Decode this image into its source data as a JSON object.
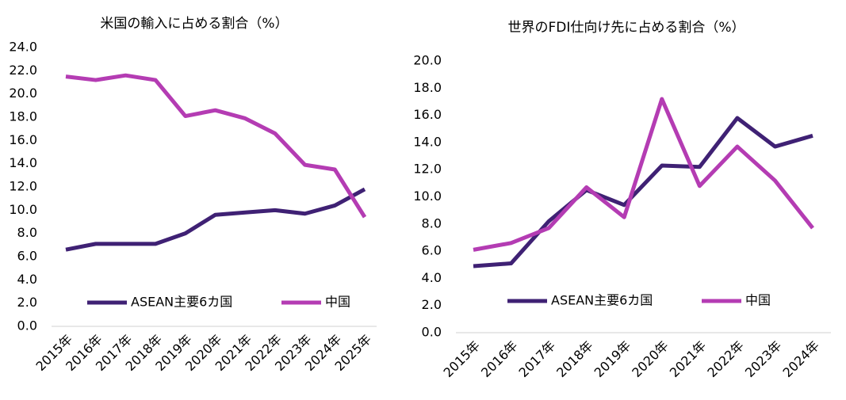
{
  "chart_data": [
    {
      "type": "line",
      "title": "米国の輸入に占める割合（%）",
      "categories": [
        "2015年",
        "2016年",
        "2017年",
        "2018年",
        "2019年",
        "2020年",
        "2021年",
        "2022年",
        "2023年",
        "2024年",
        "2025年"
      ],
      "series": [
        {
          "name": "ASEAN主要6カ国",
          "color": "#3f2174",
          "values": [
            6.6,
            7.1,
            7.1,
            7.1,
            8.0,
            9.6,
            9.8,
            10.0,
            9.7,
            10.4,
            11.8
          ]
        },
        {
          "name": "中国",
          "color": "#b43cb3",
          "values": [
            21.5,
            21.2,
            21.6,
            21.2,
            18.1,
            18.6,
            17.9,
            16.6,
            13.9,
            13.5,
            9.4
          ]
        }
      ],
      "ylim": [
        0,
        24
      ],
      "yticks": [
        {
          "value": 0,
          "label": "0.0"
        },
        {
          "value": 2,
          "label": "2.0"
        },
        {
          "value": 4,
          "label": "4.0"
        },
        {
          "value": 6,
          "label": "6.0"
        },
        {
          "value": 8,
          "label": "8.0"
        },
        {
          "value": 10,
          "label": "10.0"
        },
        {
          "value": 12,
          "label": "12.0"
        },
        {
          "value": 14,
          "label": "14.0"
        },
        {
          "value": 16,
          "label": "16.0"
        },
        {
          "value": 18,
          "label": "18.0"
        },
        {
          "value": 20,
          "label": "20.0"
        },
        {
          "value": 22,
          "label": "22.0"
        },
        {
          "value": 24,
          "label": "24.0"
        }
      ],
      "grid": false
    },
    {
      "type": "line",
      "title": "世界のFDI仕向け先に占める割合（%）",
      "categories": [
        "2015年",
        "2016年",
        "2017年",
        "2018年",
        "2019年",
        "2020年",
        "2021年",
        "2022年",
        "2023年",
        "2024年"
      ],
      "series": [
        {
          "name": "ASEAN主要6カ国",
          "color": "#3f2174",
          "values": [
            4.9,
            5.1,
            8.2,
            10.5,
            9.4,
            12.3,
            12.2,
            15.8,
            13.7,
            14.5
          ]
        },
        {
          "name": "中国",
          "color": "#b43cb3",
          "values": [
            6.1,
            6.6,
            7.7,
            10.7,
            8.5,
            17.2,
            10.8,
            13.7,
            11.2,
            7.7
          ]
        }
      ],
      "ylim": [
        0,
        20
      ],
      "yticks": [
        {
          "value": 0,
          "label": "0.0"
        },
        {
          "value": 2,
          "label": "2.0"
        },
        {
          "value": 4,
          "label": "4.0"
        },
        {
          "value": 6,
          "label": "6.0"
        },
        {
          "value": 8,
          "label": "8.0"
        },
        {
          "value": 10,
          "label": "10.0"
        },
        {
          "value": 12,
          "label": "12.0"
        },
        {
          "value": 14,
          "label": "14.0"
        },
        {
          "value": 16,
          "label": "16.0"
        },
        {
          "value": 18,
          "label": "18.0"
        },
        {
          "value": 20,
          "label": "20.0"
        }
      ],
      "grid": false
    }
  ]
}
